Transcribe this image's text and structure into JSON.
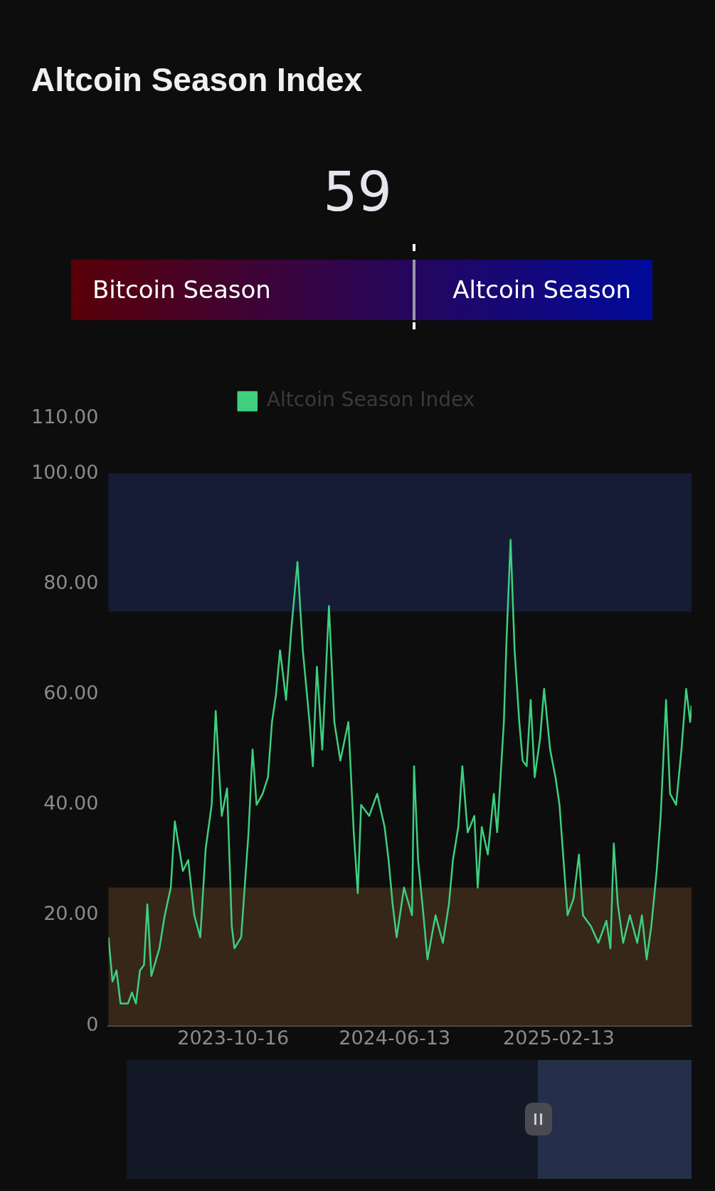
{
  "chart_data": [
    {
      "type": "other",
      "title": "Altcoin Season Index",
      "annotations": [
        "59",
        "Bitcoin Season",
        "Altcoin Season"
      ]
    },
    {
      "type": "line",
      "legend": "top",
      "marker": "none",
      "line_style": "solid",
      "grid": false,
      "x": [
        "2023-04-13",
        "2023-04-19",
        "2023-04-25",
        "2023-05-01",
        "2023-05-12",
        "2023-05-18",
        "2023-05-24",
        "2023-05-30",
        "2023-06-05",
        "2023-06-10",
        "2023-06-16",
        "2023-06-28",
        "2023-07-06",
        "2023-07-15",
        "2023-07-21",
        "2023-08-02",
        "2023-08-10",
        "2023-08-19",
        "2023-08-28",
        "2023-09-05",
        "2023-09-14",
        "2023-09-20",
        "2023-09-29",
        "2023-10-07",
        "2023-10-14",
        "2023-10-18",
        "2023-10-28",
        "2023-11-08",
        "2023-11-14",
        "2023-11-20",
        "2023-11-29",
        "2023-12-07",
        "2023-12-13",
        "2023-12-19",
        "2023-12-25",
        "2024-01-03",
        "2024-01-11",
        "2024-01-20",
        "2024-01-28",
        "2024-02-07",
        "2024-02-12",
        "2024-02-18",
        "2024-02-26",
        "2024-03-07",
        "2024-03-15",
        "2024-03-24",
        "2024-04-05",
        "2024-04-13",
        "2024-04-19",
        "2024-04-24",
        "2024-05-06",
        "2024-05-18",
        "2024-05-29",
        "2024-06-04",
        "2024-06-10",
        "2024-06-16",
        "2024-06-27",
        "2024-07-09",
        "2024-07-12",
        "2024-07-18",
        "2024-07-26",
        "2024-08-01",
        "2024-08-13",
        "2024-08-24",
        "2024-09-02",
        "2024-09-08",
        "2024-09-16",
        "2024-09-22",
        "2024-09-30",
        "2024-10-10",
        "2024-10-15",
        "2024-10-21",
        "2024-10-30",
        "2024-11-08",
        "2024-11-13",
        "2024-11-23",
        "2024-11-27",
        "2024-12-03",
        "2024-12-09",
        "2024-12-16",
        "2024-12-21",
        "2024-12-27",
        "2025-01-02",
        "2025-01-08",
        "2025-01-16",
        "2025-01-22",
        "2025-01-31",
        "2025-02-08",
        "2025-02-14",
        "2025-02-20",
        "2025-02-26",
        "2025-03-07",
        "2025-03-15",
        "2025-03-21",
        "2025-04-02",
        "2025-04-13",
        "2025-04-25",
        "2025-05-01",
        "2025-05-06",
        "2025-05-12",
        "2025-05-20",
        "2025-05-30",
        "2025-06-10",
        "2025-06-17",
        "2025-06-24",
        "2025-07-01",
        "2025-07-09",
        "2025-07-15",
        "2025-07-23",
        "2025-07-29",
        "2025-08-07",
        "2025-08-15",
        "2025-08-22",
        "2025-08-28",
        "2025-08-30"
      ],
      "series": [
        {
          "name": "Altcoin Season Index",
          "color": "#3ecf7f",
          "values": [
            16,
            8,
            10,
            4,
            4,
            6,
            4,
            10,
            11,
            22,
            9,
            14,
            20,
            25,
            37,
            28,
            30,
            20,
            16,
            32,
            40,
            57,
            38,
            43,
            18,
            14,
            16,
            35,
            50,
            40,
            42,
            45,
            55,
            60,
            68,
            59,
            72,
            84,
            68,
            55,
            47,
            65,
            50,
            76,
            55,
            48,
            55,
            35,
            24,
            40,
            38,
            42,
            36,
            30,
            22,
            16,
            25,
            20,
            47,
            30,
            20,
            12,
            20,
            15,
            22,
            30,
            36,
            47,
            35,
            38,
            25,
            36,
            31,
            42,
            35,
            55,
            70,
            88,
            68,
            55,
            48,
            47,
            59,
            45,
            52,
            61,
            50,
            45,
            40,
            30,
            20,
            23,
            31,
            20,
            18,
            15,
            19,
            14,
            33,
            22,
            15,
            20,
            15,
            20,
            12,
            18,
            28,
            38,
            59,
            42,
            40,
            50,
            61,
            55,
            58
          ]
        }
      ],
      "xlim": [
        "2023-04-13",
        "2025-08-30"
      ],
      "xticks": [
        "2023-10-16",
        "2024-06-13",
        "2025-02-13"
      ],
      "ylim": [
        0,
        110
      ],
      "yticks": [
        0,
        {
          "value": 20,
          "label": "20.00"
        },
        {
          "value": 40,
          "label": "40.00"
        },
        {
          "value": 60,
          "label": "60.00"
        },
        {
          "value": 80,
          "label": "80.00"
        },
        {
          "value": 100,
          "label": "100.00"
        },
        {
          "value": 110,
          "label": "110.00"
        }
      ],
      "bands": [
        {
          "axis": "y",
          "from": 75,
          "to": 100,
          "color": "#161c36"
        },
        {
          "axis": "y",
          "from": 0,
          "to": 25,
          "color": "#372718"
        }
      ]
    }
  ]
}
